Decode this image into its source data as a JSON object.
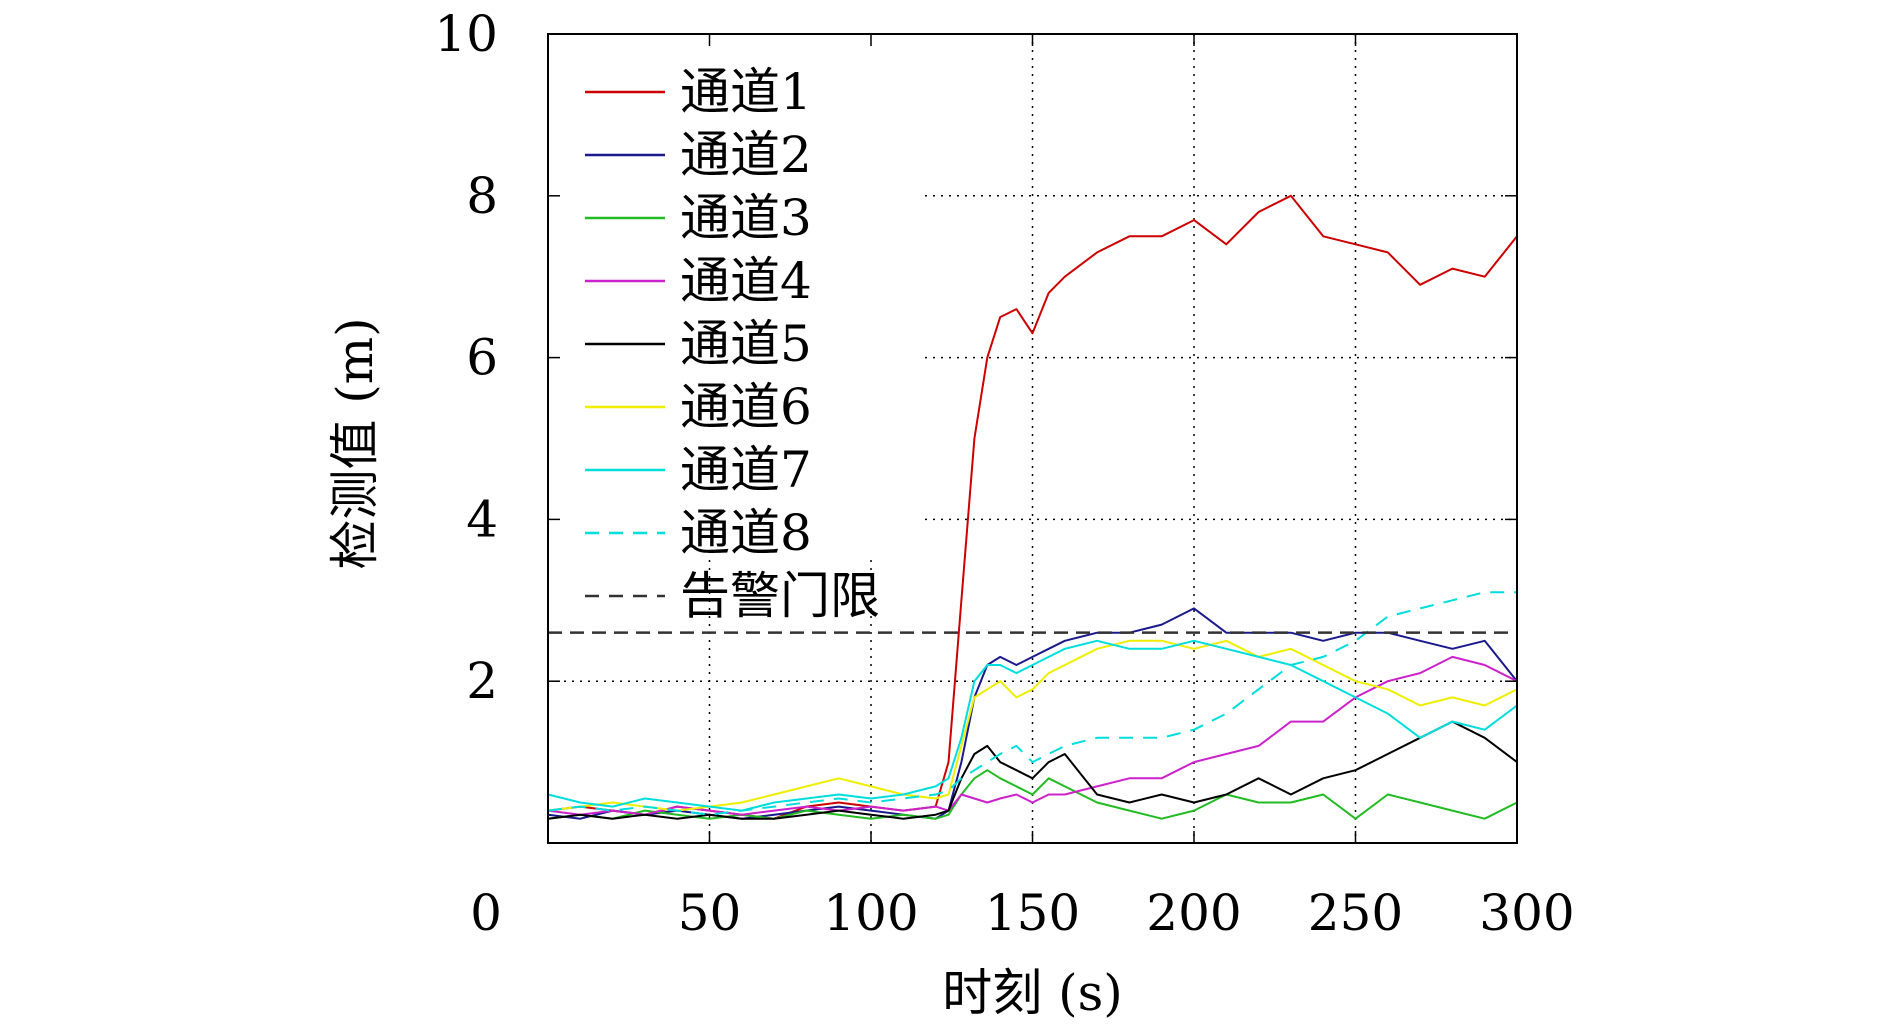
{
  "chart_data": {
    "type": "line",
    "title": "",
    "xlabel": "时刻 (s)",
    "ylabel": "检测值 (m)",
    "xlim": [
      0,
      300
    ],
    "ylim": [
      0,
      10
    ],
    "x_ticks": [
      {
        "value": 0,
        "label": "0"
      },
      {
        "value": 50,
        "label": "50"
      },
      {
        "value": 100,
        "label": "100"
      },
      {
        "value": 150,
        "label": "150"
      },
      {
        "value": 200,
        "label": "200"
      },
      {
        "value": 250,
        "label": "250"
      },
      {
        "value": 300,
        "label": "300"
      }
    ],
    "y_ticks": [
      {
        "value": 2,
        "label": "2"
      },
      {
        "value": 4,
        "label": "4"
      },
      {
        "value": 6,
        "label": "6"
      },
      {
        "value": 8,
        "label": "8"
      },
      {
        "value": 10,
        "label": "10"
      }
    ],
    "grid": "dotted",
    "legend_position": "top-left",
    "x": [
      0,
      10,
      20,
      30,
      40,
      50,
      60,
      70,
      80,
      90,
      100,
      110,
      120,
      124,
      128,
      132,
      136,
      140,
      145,
      150,
      155,
      160,
      170,
      180,
      190,
      200,
      210,
      220,
      230,
      240,
      250,
      260,
      270,
      280,
      290,
      300
    ],
    "series": [
      {
        "name": "通道1",
        "color": "#cc0000",
        "dash": "solid",
        "values": [
          0.4,
          0.45,
          0.4,
          0.35,
          0.45,
          0.4,
          0.35,
          0.3,
          0.45,
          0.5,
          0.45,
          0.4,
          0.45,
          1.0,
          3.0,
          5.0,
          6.0,
          6.5,
          6.6,
          6.3,
          6.8,
          7.0,
          7.3,
          7.5,
          7.5,
          7.7,
          7.4,
          7.8,
          8.0,
          7.5,
          7.4,
          7.3,
          6.9,
          7.1,
          7.0,
          7.5
        ]
      },
      {
        "name": "通道2",
        "color": "#1a1a8c",
        "dash": "solid",
        "values": [
          0.35,
          0.3,
          0.4,
          0.35,
          0.4,
          0.35,
          0.3,
          0.35,
          0.4,
          0.45,
          0.4,
          0.35,
          0.3,
          0.4,
          1.0,
          1.8,
          2.2,
          2.3,
          2.2,
          2.3,
          2.4,
          2.5,
          2.6,
          2.6,
          2.7,
          2.9,
          2.6,
          2.6,
          2.6,
          2.5,
          2.6,
          2.6,
          2.5,
          2.4,
          2.5,
          2.0
        ]
      },
      {
        "name": "通道3",
        "color": "#22bb22",
        "dash": "solid",
        "values": [
          0.3,
          0.35,
          0.3,
          0.4,
          0.35,
          0.3,
          0.35,
          0.3,
          0.4,
          0.35,
          0.3,
          0.35,
          0.3,
          0.35,
          0.6,
          0.8,
          0.9,
          0.8,
          0.7,
          0.6,
          0.8,
          0.7,
          0.5,
          0.4,
          0.3,
          0.4,
          0.6,
          0.5,
          0.5,
          0.6,
          0.3,
          0.6,
          0.5,
          0.4,
          0.3,
          0.5
        ]
      },
      {
        "name": "通道4",
        "color": "#cc22cc",
        "dash": "solid",
        "values": [
          0.4,
          0.35,
          0.4,
          0.35,
          0.45,
          0.4,
          0.35,
          0.4,
          0.45,
          0.4,
          0.45,
          0.4,
          0.45,
          0.4,
          0.6,
          0.55,
          0.5,
          0.55,
          0.6,
          0.5,
          0.6,
          0.6,
          0.7,
          0.8,
          0.8,
          1.0,
          1.1,
          1.2,
          1.5,
          1.5,
          1.8,
          2.0,
          2.1,
          2.3,
          2.2,
          2.0
        ]
      },
      {
        "name": "通道5",
        "color": "#000000",
        "dash": "solid",
        "values": [
          0.3,
          0.35,
          0.3,
          0.35,
          0.3,
          0.35,
          0.3,
          0.3,
          0.35,
          0.4,
          0.35,
          0.3,
          0.35,
          0.4,
          0.8,
          1.1,
          1.2,
          1.0,
          0.9,
          0.8,
          1.0,
          1.1,
          0.6,
          0.5,
          0.6,
          0.5,
          0.6,
          0.8,
          0.6,
          0.8,
          0.9,
          1.1,
          1.3,
          1.5,
          1.3,
          1.0
        ]
      },
      {
        "name": "通道6",
        "color": "#eeee00",
        "dash": "solid",
        "values": [
          0.4,
          0.45,
          0.5,
          0.45,
          0.4,
          0.45,
          0.5,
          0.6,
          0.7,
          0.8,
          0.7,
          0.6,
          0.55,
          0.6,
          1.2,
          1.8,
          1.9,
          2.0,
          1.8,
          1.9,
          2.1,
          2.2,
          2.4,
          2.5,
          2.5,
          2.4,
          2.5,
          2.3,
          2.4,
          2.2,
          2.0,
          1.9,
          1.7,
          1.8,
          1.7,
          1.9
        ]
      },
      {
        "name": "通道7",
        "color": "#00dddd",
        "dash": "solid",
        "values": [
          0.6,
          0.5,
          0.45,
          0.55,
          0.5,
          0.45,
          0.4,
          0.5,
          0.55,
          0.6,
          0.55,
          0.6,
          0.7,
          0.8,
          1.3,
          2.0,
          2.2,
          2.2,
          2.1,
          2.2,
          2.3,
          2.4,
          2.5,
          2.4,
          2.4,
          2.5,
          2.4,
          2.3,
          2.2,
          2.0,
          1.8,
          1.6,
          1.3,
          1.5,
          1.4,
          1.7
        ]
      },
      {
        "name": "通道8",
        "color": "#00dddd",
        "dash": "dashed",
        "values": [
          0.4,
          0.45,
          0.4,
          0.45,
          0.4,
          0.35,
          0.4,
          0.45,
          0.5,
          0.55,
          0.5,
          0.55,
          0.6,
          0.65,
          0.8,
          0.9,
          1.0,
          1.1,
          1.2,
          1.0,
          1.1,
          1.2,
          1.3,
          1.3,
          1.3,
          1.4,
          1.6,
          1.9,
          2.2,
          2.3,
          2.5,
          2.8,
          2.9,
          3.0,
          3.1,
          3.1
        ]
      }
    ],
    "reference_line": {
      "name": "告警门限",
      "value": 2.6,
      "color": "#333333",
      "dash": "dashed"
    }
  }
}
